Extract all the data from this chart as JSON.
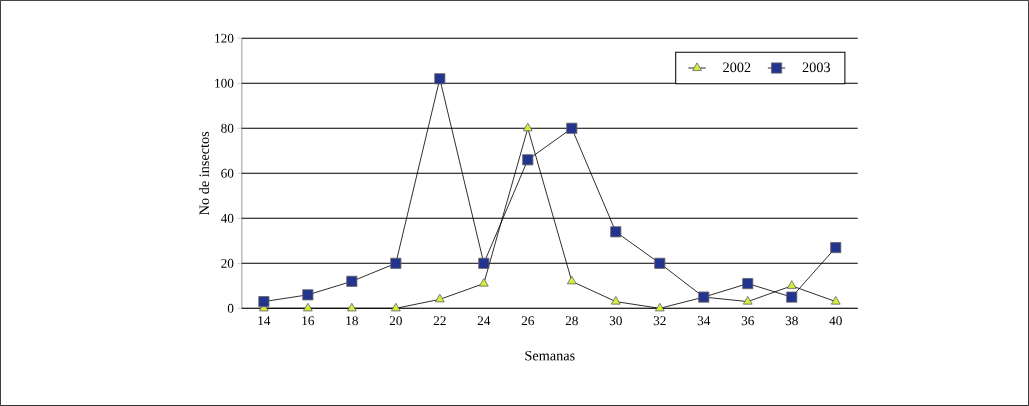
{
  "chart_data": {
    "type": "line",
    "xlabel": "Semanas",
    "ylabel": "No de insectos",
    "categories": [
      "14",
      "16",
      "18",
      "20",
      "22",
      "24",
      "26",
      "28",
      "30",
      "32",
      "34",
      "36",
      "38",
      "40"
    ],
    "series": [
      {
        "name": "2002",
        "color": "#d8ec3c",
        "marker": "triangle",
        "values": [
          0,
          0,
          0,
          0,
          4,
          11,
          80,
          12,
          3,
          0,
          5,
          3,
          10,
          3
        ]
      },
      {
        "name": "2003",
        "color": "#23348f",
        "marker": "square",
        "values": [
          3,
          6,
          12,
          20,
          102,
          20,
          66,
          80,
          34,
          20,
          5,
          11,
          5,
          27
        ]
      }
    ],
    "ylim": [
      0,
      120
    ],
    "yticks": [
      0,
      20,
      40,
      60,
      80,
      100,
      120
    ],
    "grid": "y",
    "legend": "top right"
  }
}
